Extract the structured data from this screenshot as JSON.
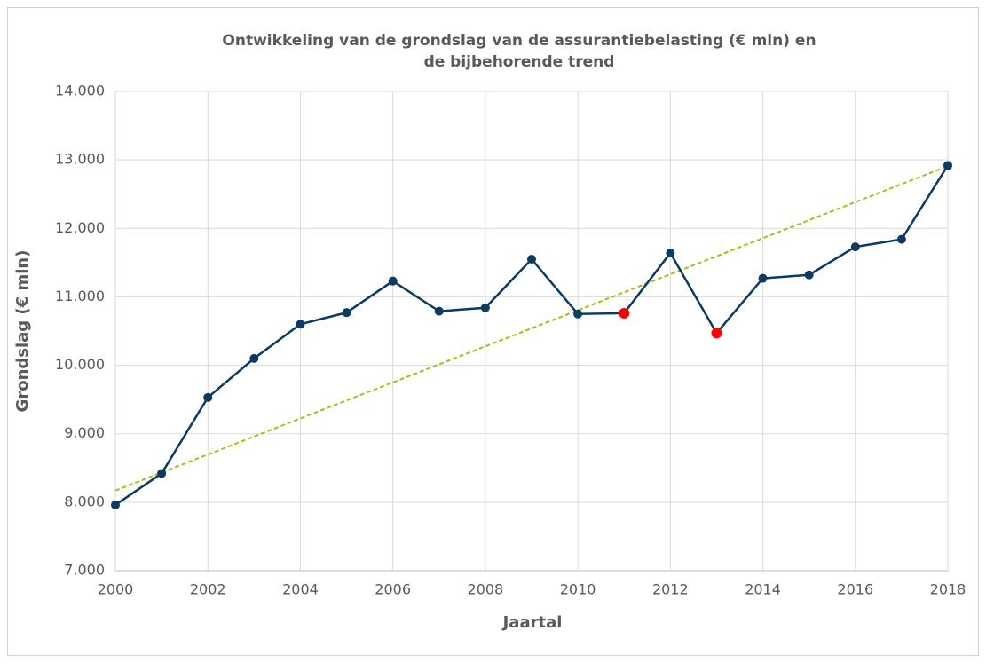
{
  "chart_data": {
    "type": "line",
    "title": [
      "Ontwikkeling van de grondslag van de assurantiebelasting (€ mln) en",
      "de bijbehorende trend"
    ],
    "x_label": "Jaartal",
    "y_label": "Grondslag (€ mln)",
    "x": [
      2000,
      2001,
      2002,
      2003,
      2004,
      2005,
      2006,
      2007,
      2008,
      2009,
      2010,
      2011,
      2012,
      2013,
      2014,
      2015,
      2016,
      2017,
      2018
    ],
    "series": [
      {
        "color": "#0b3a63",
        "values": [
          7960,
          8420,
          9530,
          10100,
          10600,
          10770,
          11230,
          10790,
          10840,
          11550,
          10750,
          10760,
          11640,
          10470,
          11270,
          11320,
          11730,
          11840,
          12920
        ]
      }
    ],
    "highlight_x": [
      2011,
      2013
    ],
    "highlight_color": "#ff0000",
    "trendline": {
      "x": [
        2000,
        2018
      ],
      "values": [
        8170,
        12910
      ],
      "color": "#9fc31c",
      "dashed": true
    },
    "xlim": [
      2000,
      2018
    ],
    "xticks": [
      2000,
      2002,
      2004,
      2006,
      2008,
      2010,
      2012,
      2014,
      2016,
      2018
    ],
    "ylim": [
      7000,
      14000
    ],
    "yticks": [
      {
        "value": 7000,
        "label": "7.000"
      },
      {
        "value": 8000,
        "label": "8.000"
      },
      {
        "value": 9000,
        "label": "9.000"
      },
      {
        "value": 10000,
        "label": "10.000"
      },
      {
        "value": 11000,
        "label": "11.000"
      },
      {
        "value": 12000,
        "label": "12.000"
      },
      {
        "value": 13000,
        "label": "13.000"
      },
      {
        "value": 14000,
        "label": "14.000"
      }
    ],
    "grid": true
  }
}
